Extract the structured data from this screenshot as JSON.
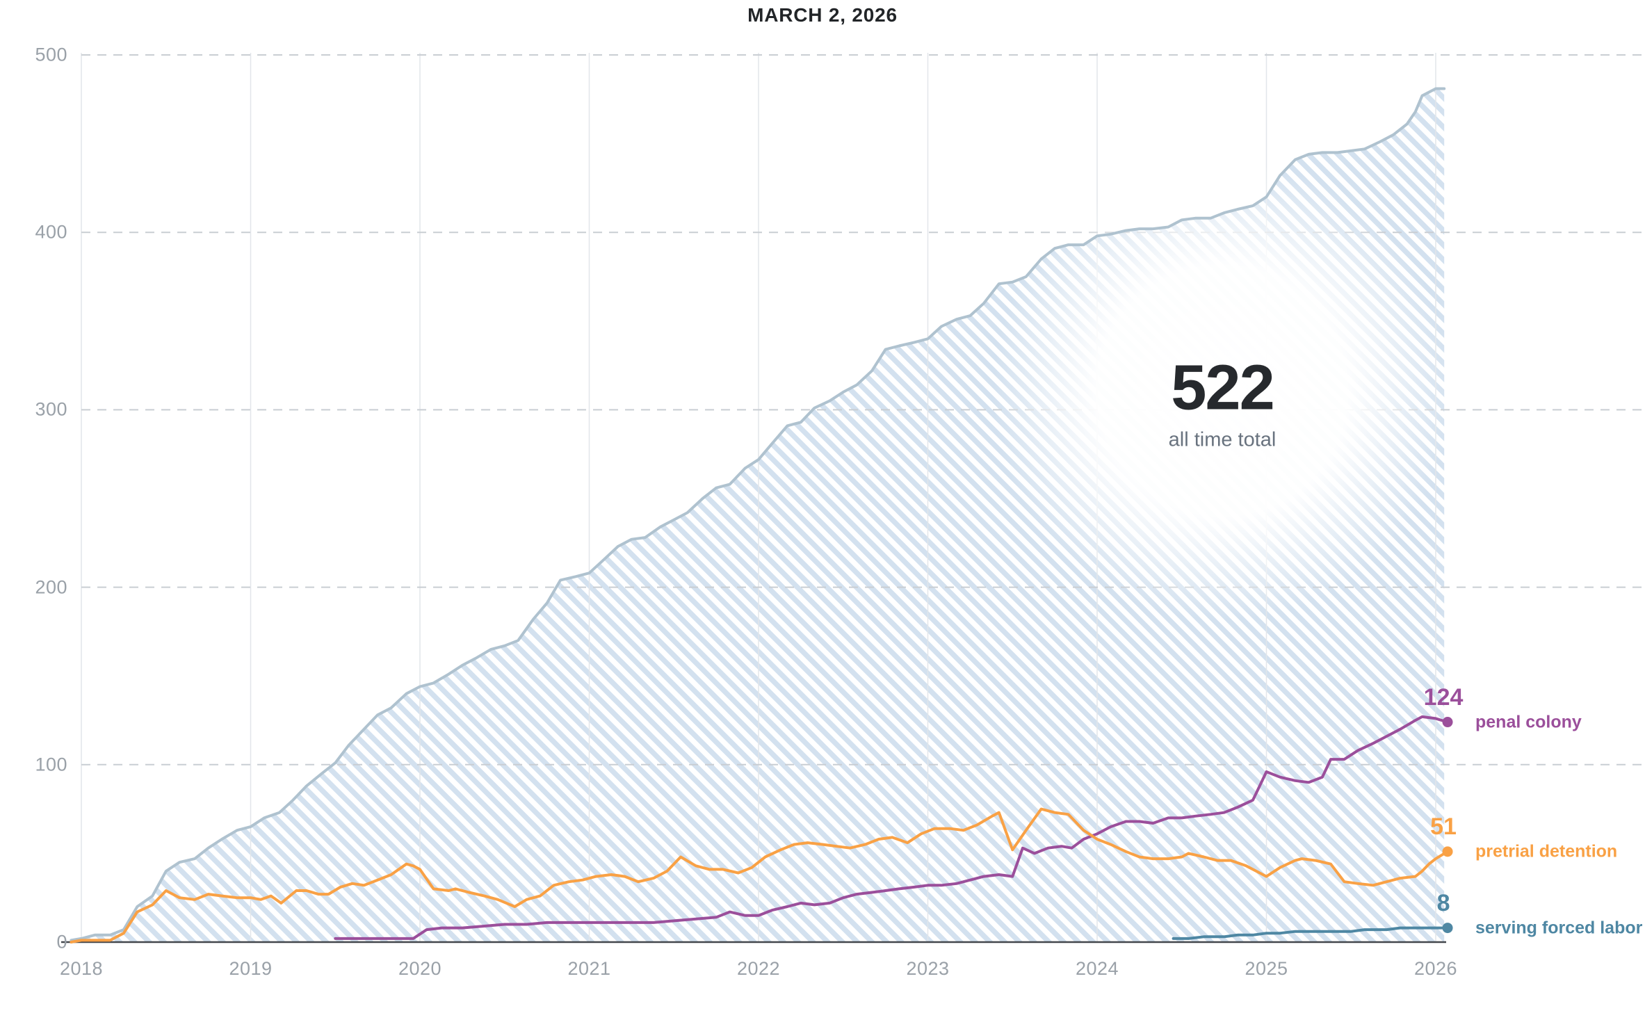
{
  "title": "MARCH 2, 2026",
  "summary": {
    "value": "522",
    "label": "all time total"
  },
  "colors": {
    "title_text": "#222528",
    "big_number": "#26292d",
    "big_sub": "#68727e",
    "tick_text": "#9aa1a8",
    "grid_dash": "#c9ced3",
    "grid_year": "#e2e6ea",
    "axis_line": "#43474c",
    "area_hatch": "#ccdcec",
    "total_line": "#afc2cf",
    "penal_colony": "#9b4f9b",
    "pretrial_detention": "#f9a145",
    "forced_labor": "#4e87a3"
  },
  "chart_data": {
    "type": "area",
    "title": "MARCH 2, 2026",
    "annotation": {
      "value": 522,
      "label": "all time total"
    },
    "grid": "on",
    "legend_position": "right-end-labels",
    "x_axis": {
      "ticks": [
        2018,
        2019,
        2020,
        2021,
        2022,
        2023,
        2024,
        2025,
        2026
      ],
      "min": 2017.9,
      "max": 2026.2
    },
    "y_axis": {
      "ticks": [
        0,
        100,
        200,
        300,
        400,
        500
      ],
      "min": 0,
      "max": 500
    },
    "series": [
      {
        "name": "all time total",
        "kind": "hatched-area",
        "color_key": "total_line",
        "value_label": "",
        "points": [
          [
            2017.94,
            1
          ],
          [
            2018.0,
            2
          ],
          [
            2018.08,
            4
          ],
          [
            2018.17,
            4
          ],
          [
            2018.25,
            7
          ],
          [
            2018.33,
            20
          ],
          [
            2018.42,
            26
          ],
          [
            2018.5,
            40
          ],
          [
            2018.58,
            45
          ],
          [
            2018.67,
            47
          ],
          [
            2018.75,
            53
          ],
          [
            2018.83,
            58
          ],
          [
            2018.92,
            63
          ],
          [
            2019.0,
            65
          ],
          [
            2019.08,
            70
          ],
          [
            2019.17,
            73
          ],
          [
            2019.25,
            80
          ],
          [
            2019.33,
            88
          ],
          [
            2019.42,
            95
          ],
          [
            2019.5,
            101
          ],
          [
            2019.58,
            111
          ],
          [
            2019.67,
            120
          ],
          [
            2019.75,
            128
          ],
          [
            2019.83,
            132
          ],
          [
            2019.92,
            140
          ],
          [
            2020.0,
            144
          ],
          [
            2020.08,
            146
          ],
          [
            2020.17,
            151
          ],
          [
            2020.25,
            156
          ],
          [
            2020.33,
            160
          ],
          [
            2020.42,
            165
          ],
          [
            2020.5,
            167
          ],
          [
            2020.58,
            170
          ],
          [
            2020.67,
            182
          ],
          [
            2020.75,
            191
          ],
          [
            2020.83,
            204
          ],
          [
            2020.92,
            206
          ],
          [
            2021.0,
            208
          ],
          [
            2021.08,
            215
          ],
          [
            2021.17,
            223
          ],
          [
            2021.25,
            227
          ],
          [
            2021.33,
            228
          ],
          [
            2021.42,
            234
          ],
          [
            2021.5,
            238
          ],
          [
            2021.58,
            242
          ],
          [
            2021.67,
            250
          ],
          [
            2021.75,
            256
          ],
          [
            2021.83,
            258
          ],
          [
            2021.92,
            267
          ],
          [
            2022.0,
            272
          ],
          [
            2022.08,
            281
          ],
          [
            2022.17,
            291
          ],
          [
            2022.25,
            293
          ],
          [
            2022.33,
            301
          ],
          [
            2022.42,
            305
          ],
          [
            2022.5,
            310
          ],
          [
            2022.58,
            314
          ],
          [
            2022.67,
            322
          ],
          [
            2022.75,
            334
          ],
          [
            2022.83,
            336
          ],
          [
            2022.92,
            338
          ],
          [
            2023.0,
            340
          ],
          [
            2023.08,
            347
          ],
          [
            2023.17,
            351
          ],
          [
            2023.25,
            353
          ],
          [
            2023.33,
            360
          ],
          [
            2023.42,
            371
          ],
          [
            2023.5,
            372
          ],
          [
            2023.58,
            375
          ],
          [
            2023.67,
            385
          ],
          [
            2023.75,
            391
          ],
          [
            2023.83,
            393
          ],
          [
            2023.92,
            393
          ],
          [
            2024.0,
            398
          ],
          [
            2024.08,
            399
          ],
          [
            2024.17,
            401
          ],
          [
            2024.25,
            402
          ],
          [
            2024.33,
            402
          ],
          [
            2024.42,
            403
          ],
          [
            2024.5,
            407
          ],
          [
            2024.58,
            408
          ],
          [
            2024.67,
            408
          ],
          [
            2024.75,
            411
          ],
          [
            2024.83,
            413
          ],
          [
            2024.92,
            415
          ],
          [
            2025.0,
            420
          ],
          [
            2025.08,
            432
          ],
          [
            2025.17,
            441
          ],
          [
            2025.25,
            444
          ],
          [
            2025.33,
            445
          ],
          [
            2025.42,
            445
          ],
          [
            2025.5,
            446
          ],
          [
            2025.58,
            447
          ],
          [
            2025.67,
            451
          ],
          [
            2025.75,
            455
          ],
          [
            2025.83,
            461
          ],
          [
            2025.88,
            468
          ],
          [
            2025.92,
            477
          ],
          [
            2026.0,
            481
          ],
          [
            2026.05,
            481
          ]
        ]
      },
      {
        "name": "penal colony",
        "kind": "line",
        "color_key": "penal_colony",
        "value_label": "124",
        "points": [
          [
            2019.5,
            2
          ],
          [
            2019.96,
            2
          ],
          [
            2020.04,
            7
          ],
          [
            2020.13,
            8
          ],
          [
            2020.25,
            8
          ],
          [
            2020.38,
            9
          ],
          [
            2020.5,
            10
          ],
          [
            2020.63,
            10
          ],
          [
            2020.75,
            11
          ],
          [
            2020.88,
            11
          ],
          [
            2021.0,
            11
          ],
          [
            2021.13,
            11
          ],
          [
            2021.25,
            11
          ],
          [
            2021.38,
            11
          ],
          [
            2021.5,
            12
          ],
          [
            2021.63,
            13
          ],
          [
            2021.75,
            14
          ],
          [
            2021.83,
            17
          ],
          [
            2021.92,
            15
          ],
          [
            2022.0,
            15
          ],
          [
            2022.08,
            18
          ],
          [
            2022.17,
            20
          ],
          [
            2022.25,
            22
          ],
          [
            2022.33,
            21
          ],
          [
            2022.42,
            22
          ],
          [
            2022.5,
            25
          ],
          [
            2022.58,
            27
          ],
          [
            2022.67,
            28
          ],
          [
            2022.75,
            29
          ],
          [
            2022.83,
            30
          ],
          [
            2022.92,
            31
          ],
          [
            2023.0,
            32
          ],
          [
            2023.08,
            32
          ],
          [
            2023.17,
            33
          ],
          [
            2023.25,
            35
          ],
          [
            2023.33,
            37
          ],
          [
            2023.42,
            38
          ],
          [
            2023.5,
            37
          ],
          [
            2023.56,
            53
          ],
          [
            2023.63,
            50
          ],
          [
            2023.71,
            53
          ],
          [
            2023.79,
            54
          ],
          [
            2023.85,
            53
          ],
          [
            2023.92,
            58
          ],
          [
            2024.0,
            61
          ],
          [
            2024.08,
            65
          ],
          [
            2024.17,
            68
          ],
          [
            2024.25,
            68
          ],
          [
            2024.33,
            67
          ],
          [
            2024.42,
            70
          ],
          [
            2024.5,
            70
          ],
          [
            2024.58,
            71
          ],
          [
            2024.67,
            72
          ],
          [
            2024.75,
            73
          ],
          [
            2024.83,
            76
          ],
          [
            2024.92,
            80
          ],
          [
            2024.96,
            88
          ],
          [
            2025.0,
            96
          ],
          [
            2025.08,
            93
          ],
          [
            2025.17,
            91
          ],
          [
            2025.25,
            90
          ],
          [
            2025.33,
            93
          ],
          [
            2025.38,
            103
          ],
          [
            2025.46,
            103
          ],
          [
            2025.54,
            108
          ],
          [
            2025.63,
            112
          ],
          [
            2025.71,
            116
          ],
          [
            2025.79,
            120
          ],
          [
            2025.88,
            125
          ],
          [
            2025.92,
            127
          ],
          [
            2026.0,
            126
          ],
          [
            2026.07,
            124
          ]
        ]
      },
      {
        "name": "pretrial detention",
        "kind": "line",
        "color_key": "pretrial_detention",
        "value_label": "51",
        "points": [
          [
            2017.94,
            0
          ],
          [
            2018.0,
            1
          ],
          [
            2018.08,
            1
          ],
          [
            2018.17,
            1
          ],
          [
            2018.25,
            5
          ],
          [
            2018.33,
            17
          ],
          [
            2018.42,
            21
          ],
          [
            2018.5,
            29
          ],
          [
            2018.58,
            25
          ],
          [
            2018.67,
            24
          ],
          [
            2018.75,
            27
          ],
          [
            2018.83,
            26
          ],
          [
            2018.92,
            25
          ],
          [
            2019.0,
            25
          ],
          [
            2019.06,
            24
          ],
          [
            2019.12,
            26
          ],
          [
            2019.18,
            22
          ],
          [
            2019.27,
            29
          ],
          [
            2019.33,
            29
          ],
          [
            2019.4,
            27
          ],
          [
            2019.46,
            27
          ],
          [
            2019.53,
            31
          ],
          [
            2019.6,
            33
          ],
          [
            2019.67,
            32
          ],
          [
            2019.75,
            35
          ],
          [
            2019.83,
            38
          ],
          [
            2019.92,
            44
          ],
          [
            2019.96,
            43
          ],
          [
            2020.0,
            41
          ],
          [
            2020.08,
            30
          ],
          [
            2020.17,
            29
          ],
          [
            2020.21,
            30
          ],
          [
            2020.29,
            28
          ],
          [
            2020.38,
            26
          ],
          [
            2020.46,
            24
          ],
          [
            2020.56,
            20
          ],
          [
            2020.63,
            24
          ],
          [
            2020.71,
            26
          ],
          [
            2020.79,
            32
          ],
          [
            2020.88,
            34
          ],
          [
            2020.96,
            35
          ],
          [
            2021.04,
            37
          ],
          [
            2021.13,
            38
          ],
          [
            2021.21,
            37
          ],
          [
            2021.29,
            34
          ],
          [
            2021.38,
            36
          ],
          [
            2021.46,
            40
          ],
          [
            2021.54,
            48
          ],
          [
            2021.63,
            43
          ],
          [
            2021.71,
            41
          ],
          [
            2021.79,
            41
          ],
          [
            2021.88,
            39
          ],
          [
            2021.96,
            42
          ],
          [
            2022.04,
            48
          ],
          [
            2022.13,
            52
          ],
          [
            2022.21,
            55
          ],
          [
            2022.29,
            56
          ],
          [
            2022.38,
            55
          ],
          [
            2022.46,
            54
          ],
          [
            2022.54,
            53
          ],
          [
            2022.63,
            55
          ],
          [
            2022.71,
            58
          ],
          [
            2022.79,
            59
          ],
          [
            2022.88,
            56
          ],
          [
            2022.96,
            61
          ],
          [
            2023.04,
            64
          ],
          [
            2023.13,
            64
          ],
          [
            2023.21,
            63
          ],
          [
            2023.29,
            66
          ],
          [
            2023.38,
            71
          ],
          [
            2023.42,
            73
          ],
          [
            2023.5,
            52
          ],
          [
            2023.58,
            63
          ],
          [
            2023.67,
            75
          ],
          [
            2023.75,
            73
          ],
          [
            2023.83,
            72
          ],
          [
            2023.92,
            63
          ],
          [
            2024.0,
            58
          ],
          [
            2024.08,
            55
          ],
          [
            2024.17,
            51
          ],
          [
            2024.25,
            48
          ],
          [
            2024.33,
            47
          ],
          [
            2024.42,
            47
          ],
          [
            2024.5,
            48
          ],
          [
            2024.54,
            50
          ],
          [
            2024.63,
            48
          ],
          [
            2024.71,
            46
          ],
          [
            2024.79,
            46
          ],
          [
            2024.88,
            43
          ],
          [
            2024.96,
            39
          ],
          [
            2025.0,
            37
          ],
          [
            2025.08,
            42
          ],
          [
            2025.17,
            46
          ],
          [
            2025.21,
            47
          ],
          [
            2025.29,
            46
          ],
          [
            2025.38,
            44
          ],
          [
            2025.46,
            34
          ],
          [
            2025.54,
            33
          ],
          [
            2025.63,
            32
          ],
          [
            2025.71,
            34
          ],
          [
            2025.79,
            36
          ],
          [
            2025.88,
            37
          ],
          [
            2025.92,
            40
          ],
          [
            2025.96,
            44
          ],
          [
            2026.0,
            47
          ],
          [
            2026.07,
            51
          ]
        ]
      },
      {
        "name": "serving forced labor",
        "kind": "line",
        "color_key": "forced_labor",
        "value_label": "8",
        "points": [
          [
            2024.45,
            2
          ],
          [
            2024.54,
            2
          ],
          [
            2024.63,
            3
          ],
          [
            2024.75,
            3
          ],
          [
            2024.83,
            4
          ],
          [
            2024.92,
            4
          ],
          [
            2025.0,
            5
          ],
          [
            2025.08,
            5
          ],
          [
            2025.17,
            6
          ],
          [
            2025.29,
            6
          ],
          [
            2025.42,
            6
          ],
          [
            2025.5,
            6
          ],
          [
            2025.58,
            7
          ],
          [
            2025.71,
            7
          ],
          [
            2025.79,
            8
          ],
          [
            2025.88,
            8
          ],
          [
            2025.96,
            8
          ],
          [
            2026.07,
            8
          ]
        ]
      }
    ]
  }
}
